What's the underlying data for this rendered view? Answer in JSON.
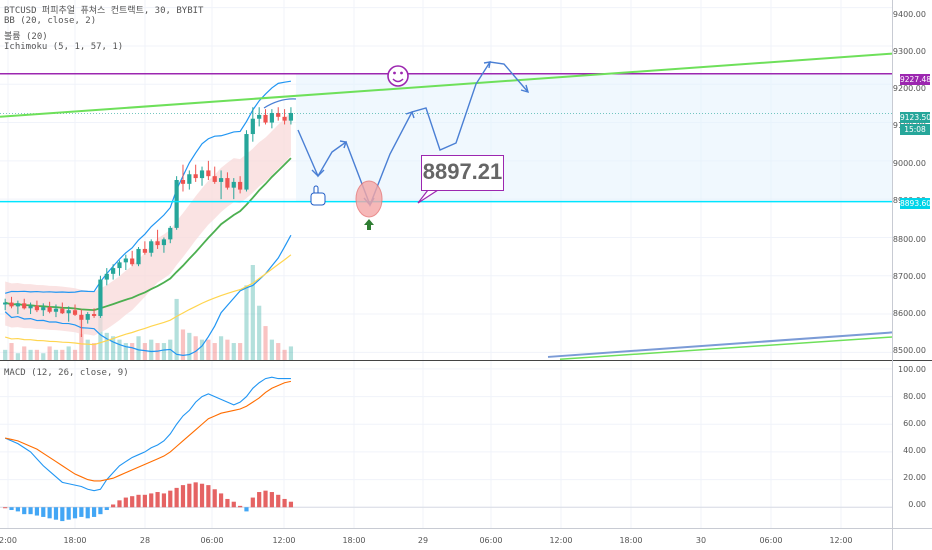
{
  "legend": {
    "title": "BTCUSD 퍼피추얼 퓨쳐스 컨트랙트, 30, BYBIT",
    "bb": "BB (20, close, 2)",
    "volume": "볼륨 (20)",
    "ichimoku": "Ichimoku (5, 1, 57, 1)",
    "macd": "MACD (12, 26, close, 9)"
  },
  "price_axis": [
    "9400.00",
    "9300.00",
    "9200.00",
    "9100.00",
    "9000.00",
    "8900.00",
    "8800.00",
    "8700.00",
    "8600.00",
    "8500.00"
  ],
  "macd_axis": [
    "100.00",
    "80.00",
    "60.00",
    "40.00",
    "20.00",
    "0.00"
  ],
  "time_axis": [
    "2:00",
    "18:00",
    "28",
    "06:00",
    "12:00",
    "18:00",
    "29",
    "06:00",
    "12:00",
    "18:00",
    "30",
    "06:00",
    "12:00"
  ],
  "price_tags": {
    "purple": "9227.48",
    "current": "9123.50",
    "countdown": "15:08",
    "cyan": "8893.60"
  },
  "callout": "8897.21",
  "colors": {
    "bull": "#26a69a",
    "bear": "#ef5350",
    "purple": "#9c27b0",
    "green": "#4caf50",
    "cyan": "#00e5ff",
    "arrow": "#4a7fd4",
    "bb": "#2196f3",
    "ma": "#ffd54f",
    "ichimoku_fill": "#f8d7d7"
  },
  "icons": [
    "smiley-icon",
    "pointing-hand-icon",
    "up-arrow-icon"
  ],
  "chart_data": [
    {
      "type": "candlestick",
      "title": "BTCUSD 퍼피추얼 퓨쳐스 컨트랙트, 30, BYBIT",
      "ylim": [
        8480,
        9420
      ],
      "candles": [
        [
          8625,
          8640,
          8610,
          8630
        ],
        [
          8630,
          8645,
          8615,
          8620
        ],
        [
          8620,
          8635,
          8600,
          8628
        ],
        [
          8628,
          8640,
          8612,
          8615
        ],
        [
          8615,
          8630,
          8600,
          8622
        ],
        [
          8622,
          8635,
          8605,
          8610
        ],
        [
          8610,
          8628,
          8595,
          8618
        ],
        [
          8618,
          8632,
          8602,
          8606
        ],
        [
          8606,
          8625,
          8592,
          8614
        ],
        [
          8614,
          8630,
          8600,
          8602
        ],
        [
          8602,
          8620,
          8580,
          8610
        ],
        [
          8610,
          8625,
          8595,
          8598
        ],
        [
          8598,
          8612,
          8540,
          8585
        ],
        [
          8585,
          8605,
          8575,
          8600
        ],
        [
          8600,
          8615,
          8590,
          8595
        ],
        [
          8595,
          8700,
          8590,
          8690
        ],
        [
          8690,
          8720,
          8675,
          8705
        ],
        [
          8705,
          8730,
          8690,
          8720
        ],
        [
          8720,
          8740,
          8700,
          8735
        ],
        [
          8735,
          8755,
          8715,
          8745
        ],
        [
          8745,
          8765,
          8725,
          8730
        ],
        [
          8730,
          8775,
          8725,
          8770
        ],
        [
          8770,
          8790,
          8755,
          8760
        ],
        [
          8760,
          8795,
          8750,
          8790
        ],
        [
          8790,
          8820,
          8770,
          8780
        ],
        [
          8780,
          8800,
          8760,
          8795
        ],
        [
          8795,
          8830,
          8785,
          8825
        ],
        [
          8825,
          8960,
          8820,
          8950
        ],
        [
          8950,
          8990,
          8920,
          8940
        ],
        [
          8940,
          8975,
          8925,
          8965
        ],
        [
          8965,
          8990,
          8945,
          8955
        ],
        [
          8955,
          8985,
          8935,
          8975
        ],
        [
          8975,
          9000,
          8950,
          8960
        ],
        [
          8960,
          8985,
          8940,
          8945
        ],
        [
          8945,
          8975,
          8900,
          8955
        ],
        [
          8955,
          8970,
          8925,
          8930
        ],
        [
          8930,
          8955,
          8900,
          8945
        ],
        [
          8945,
          8960,
          8915,
          8925
        ],
        [
          8925,
          9080,
          8920,
          9070
        ],
        [
          9070,
          9140,
          9050,
          9110
        ],
        [
          9110,
          9140,
          9090,
          9120
        ],
        [
          9120,
          9135,
          9095,
          9100
        ],
        [
          9100,
          9135,
          9085,
          9125
        ],
        [
          9125,
          9140,
          9105,
          9115
        ],
        [
          9115,
          9135,
          9095,
          9105
        ],
        [
          9105,
          9140,
          9095,
          9125
        ]
      ],
      "volume": [
        3,
        5,
        2,
        4,
        3,
        3,
        2,
        4,
        3,
        3,
        4,
        3,
        12,
        6,
        5,
        14,
        8,
        7,
        6,
        5,
        5,
        7,
        5,
        6,
        5,
        5,
        6,
        18,
        9,
        8,
        7,
        6,
        6,
        5,
        7,
        6,
        5,
        5,
        22,
        28,
        16,
        10,
        6,
        5,
        3,
        4
      ]
    },
    {
      "type": "line",
      "title": "MACD (12, 26, close, 9)",
      "ylim": [
        -15,
        105
      ],
      "series": [
        {
          "values": [
            50,
            48,
            46,
            43,
            40,
            35,
            30,
            26,
            22,
            18,
            17,
            16,
            15,
            13,
            12,
            13,
            20,
            25,
            30,
            33,
            36,
            38,
            40,
            43,
            45,
            48,
            53,
            60,
            66,
            70,
            76,
            80,
            82,
            80,
            78,
            76,
            74,
            76,
            80,
            86,
            90,
            93,
            94,
            93,
            93,
            93
          ]
        },
        {
          "values": [
            50,
            49,
            48,
            46,
            44,
            42,
            39,
            36,
            33,
            30,
            27,
            24,
            22,
            20,
            19,
            19,
            20,
            21,
            23,
            25,
            27,
            29,
            31,
            33,
            35,
            37,
            40,
            44,
            48,
            52,
            56,
            60,
            64,
            66,
            68,
            69,
            70,
            71,
            73,
            76,
            79,
            83,
            86,
            88,
            90,
            91
          ]
        }
      ],
      "histogram": [
        0,
        -2,
        -3,
        -5,
        -5,
        -6,
        -7,
        -8,
        -9,
        -10,
        -9,
        -8,
        -7,
        -8,
        -7,
        -5,
        -2,
        2,
        5,
        7,
        8,
        9,
        9,
        10,
        11,
        10,
        12,
        14,
        16,
        17,
        18,
        17,
        16,
        13,
        10,
        6,
        4,
        1,
        -3,
        7,
        11,
        12,
        11,
        9,
        6,
        4
      ]
    }
  ]
}
